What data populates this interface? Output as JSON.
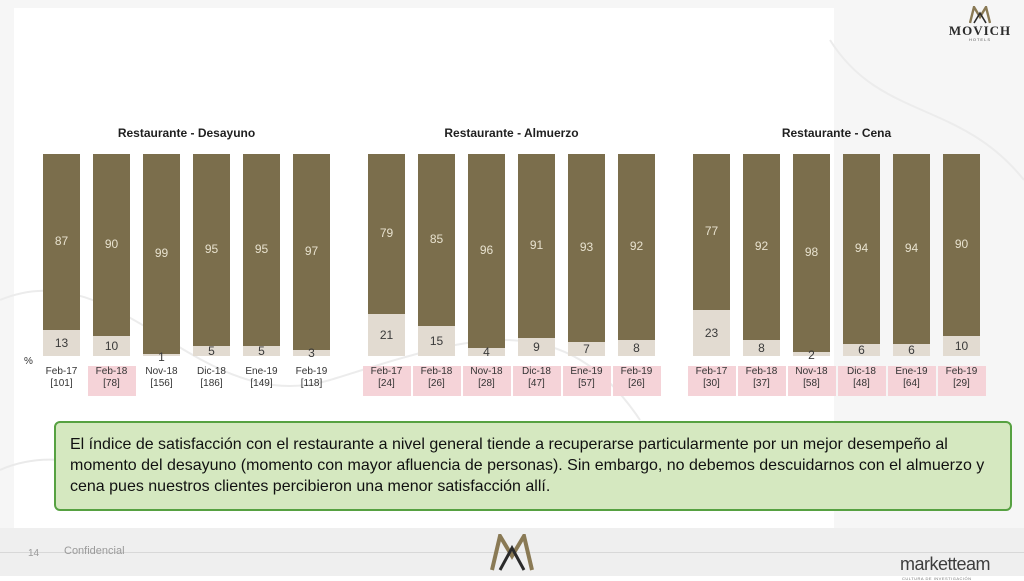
{
  "header": {
    "brand_name": "MOVICH",
    "brand_sub": "HOTELS"
  },
  "footer": {
    "page_number": "14",
    "confidential": "Confidencial",
    "agency": "marketteam",
    "agency_sub": "CULTURA DE INVESTIGACIÓN"
  },
  "axis_unit": "%",
  "callout": {
    "text": "El índice de satisfacción con el restaurante a nivel general tiende a recuperarse particularmente por un mejor desempeño al momento del desayuno (momento con mayor afluencia de personas). Sin embargo, no debemos descuidarnos con el almuerzo y cena pues nuestros clientes percibieron una menor satisfacción allí."
  },
  "colors": {
    "top_segment": "#7b6e4c",
    "bottom_segment": "#e2dbd1",
    "highlight_label": "#f5d3d8",
    "callout_bg": "#d5e8c0",
    "callout_border": "#56a141"
  },
  "chart_data": [
    {
      "type": "bar",
      "stacked": true,
      "title": "Restaurante - Desayuno",
      "categories": [
        "Feb-17",
        "Feb-18",
        "Nov-18",
        "Dic-18",
        "Ene-19",
        "Feb-19"
      ],
      "base": [
        "[101]",
        "[78]",
        "[156]",
        "[186]",
        "[149]",
        "[118]"
      ],
      "highlighted": [
        false,
        true,
        false,
        false,
        false,
        false
      ],
      "series": [
        {
          "values": [
            87,
            90,
            99,
            95,
            95,
            97
          ]
        },
        {
          "values": [
            13,
            10,
            1,
            5,
            5,
            3
          ]
        }
      ],
      "ylim": [
        0,
        100
      ]
    },
    {
      "type": "bar",
      "stacked": true,
      "title": "Restaurante - Almuerzo",
      "categories": [
        "Feb-17",
        "Feb-18",
        "Nov-18",
        "Dic-18",
        "Ene-19",
        "Feb-19"
      ],
      "base": [
        "[24]",
        "[26]",
        "[28]",
        "[47]",
        "[57]",
        "[26]"
      ],
      "highlighted": [
        true,
        true,
        true,
        true,
        true,
        true
      ],
      "series": [
        {
          "values": [
            79,
            85,
            96,
            91,
            93,
            92
          ]
        },
        {
          "values": [
            21,
            15,
            4,
            9,
            7,
            8
          ]
        }
      ],
      "ylim": [
        0,
        100
      ]
    },
    {
      "type": "bar",
      "stacked": true,
      "title": "Restaurante - Cena",
      "categories": [
        "Feb-17",
        "Feb-18",
        "Nov-18",
        "Dic-18",
        "Ene-19",
        "Feb-19"
      ],
      "base": [
        "[30]",
        "[37]",
        "[58]",
        "[48]",
        "[64]",
        "[29]"
      ],
      "highlighted": [
        true,
        true,
        true,
        true,
        true,
        true
      ],
      "series": [
        {
          "values": [
            77,
            92,
            98,
            94,
            94,
            90
          ]
        },
        {
          "values": [
            23,
            8,
            2,
            6,
            6,
            10
          ]
        }
      ],
      "ylim": [
        0,
        100
      ]
    }
  ]
}
